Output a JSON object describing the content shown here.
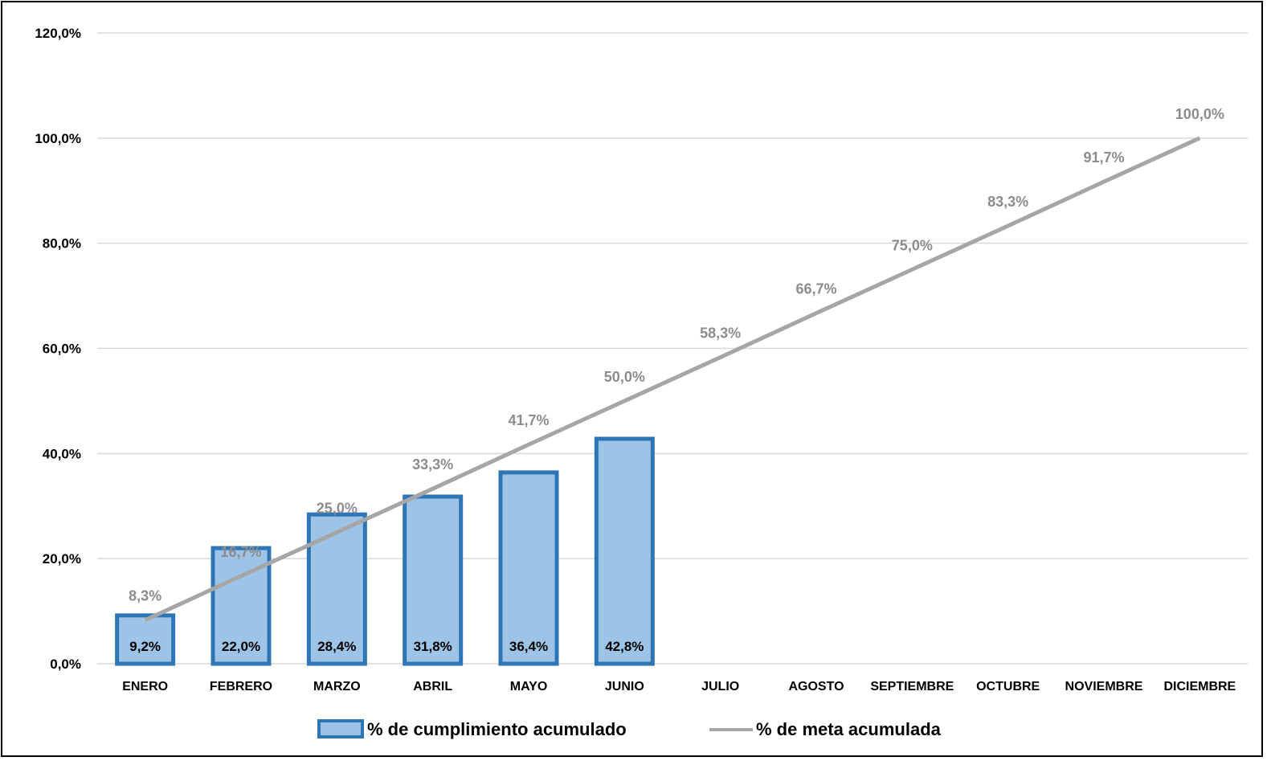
{
  "chart_data": {
    "type": "bar",
    "categories": [
      "ENERO",
      "FEBRERO",
      "MARZO",
      "ABRIL",
      "MAYO",
      "JUNIO",
      "JULIO",
      "AGOSTO",
      "SEPTIEMBRE",
      "OCTUBRE",
      "NOVIEMBRE",
      "DICIEMBRE"
    ],
    "series": [
      {
        "name": "% de cumplimiento acumulado",
        "type": "bar",
        "values": [
          9.2,
          22.0,
          28.4,
          31.8,
          36.4,
          42.8,
          null,
          null,
          null,
          null,
          null,
          null
        ],
        "labels": [
          "9,2%",
          "22,0%",
          "28,4%",
          "31,8%",
          "36,4%",
          "42,8%"
        ],
        "fill": "#9dc3e6",
        "stroke": "#2e75b6"
      },
      {
        "name": "% de meta acumulada",
        "type": "line",
        "values": [
          8.3,
          16.7,
          25.0,
          33.3,
          41.7,
          50.0,
          58.3,
          66.7,
          75.0,
          83.3,
          91.7,
          100.0
        ],
        "labels": [
          "8,3%",
          "16,7%",
          "25,0%",
          "33,3%",
          "41,7%",
          "50,0%",
          "58,3%",
          "66,7%",
          "75,0%",
          "83,3%",
          "91,7%",
          "100,0%"
        ],
        "color": "#a6a6a6"
      }
    ],
    "yticks": [
      0,
      20,
      40,
      60,
      80,
      100,
      120
    ],
    "ytick_labels": [
      "0,0%",
      "20,0%",
      "40,0%",
      "60,0%",
      "80,0%",
      "100,0%",
      "120,0%"
    ],
    "ylim": [
      0,
      120
    ],
    "grid": true,
    "legend_position": "bottom",
    "title": "",
    "xlabel": "",
    "ylabel": ""
  }
}
